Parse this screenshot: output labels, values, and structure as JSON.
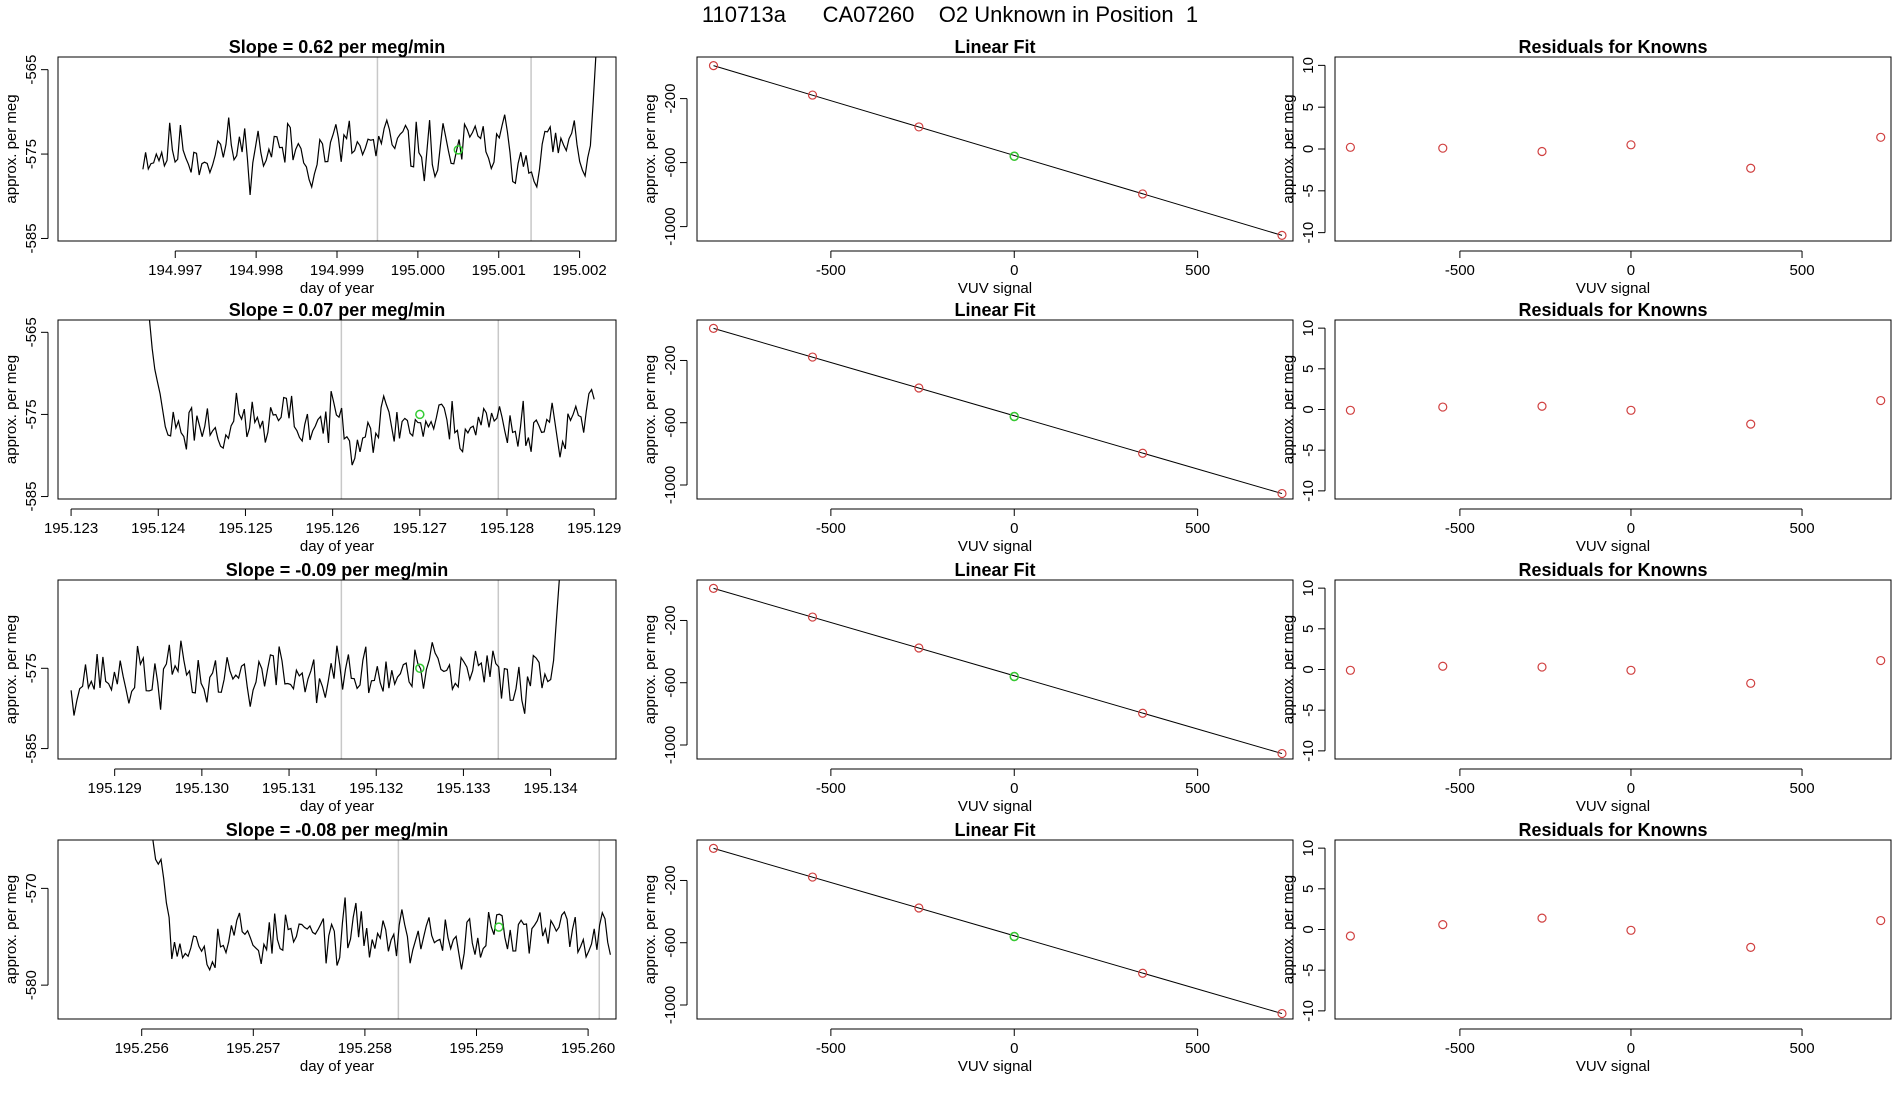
{
  "page": {
    "title": "110713a      CA07260    O2 Unknown in Position  1"
  },
  "colors": {
    "line": "#000000",
    "marker_known": "#d04040",
    "marker_unknown": "#33cc33",
    "vline": "#c8c8c8"
  },
  "chart_data": [
    {
      "type": "line",
      "row": 1,
      "col": 1,
      "title": "Slope =  0.62  per meg/min",
      "xlabel": "day of year",
      "ylabel": "approx. per meg",
      "xlim": [
        194.99555,
        195.00245
      ],
      "ylim": [
        -585.3,
        -563.5
      ],
      "xticks": [
        "194.997",
        "194.998",
        "194.999",
        "195.000",
        "195.001",
        "195.002"
      ],
      "xtick_values": [
        194.997,
        194.998,
        194.999,
        195.0,
        195.001,
        195.002
      ],
      "yticks": [
        "-565",
        "-575",
        "-585"
      ],
      "ytick_values": [
        -565,
        -575,
        -585
      ],
      "vlines": [
        194.9995,
        195.0014
      ],
      "series": [
        {
          "x_start": 194.9966,
          "x_end": 195.0022,
          "baseline": -574.5,
          "amplitude": 2.8,
          "seed": 11,
          "lead": null,
          "tail": {
            "points": 3,
            "values": [
              -574.0,
              -569.0,
              -563.5
            ]
          }
        }
      ],
      "unknown_point": {
        "x": 195.0005,
        "y": -574.5
      }
    },
    {
      "type": "line",
      "row": 1,
      "col": 2,
      "title": "Linear Fit",
      "xlabel": "VUV signal",
      "ylabel": "approx. per meg",
      "xlim": [
        -865,
        760
      ],
      "ylim": [
        -1090,
        60
      ],
      "xticks": [
        "-500",
        "0",
        "500"
      ],
      "xtick_values": [
        -500,
        0,
        500
      ],
      "yticks": [
        "-200",
        "-600",
        "-1000"
      ],
      "ytick_values": [
        -200,
        -600,
        -1000
      ],
      "fit_line": {
        "x": [
          -820,
          730
        ],
        "y": [
          6,
          -1055
        ]
      },
      "known_points": {
        "x": [
          -820,
          -550,
          -260,
          0,
          350,
          730
        ],
        "y": [
          6,
          -178,
          -377,
          -560,
          -796,
          -1055
        ]
      },
      "unknown_point": {
        "x": 0,
        "y": -560
      }
    },
    {
      "type": "scatter",
      "row": 1,
      "col": 3,
      "title": "Residuals for Knowns",
      "xlabel": "VUV signal",
      "ylabel": "approx. per meg",
      "xlim": [
        -865,
        760
      ],
      "ylim": [
        -11,
        11
      ],
      "xticks": [
        "-500",
        "0",
        "500"
      ],
      "xtick_values": [
        -500,
        0,
        500
      ],
      "yticks": [
        "10",
        "5",
        "0",
        "-5",
        "-10"
      ],
      "ytick_values": [
        10,
        5,
        0,
        -5,
        -10
      ],
      "points": {
        "x": [
          -820,
          -550,
          -260,
          0,
          350,
          730
        ],
        "y": [
          0.2,
          0.1,
          -0.3,
          0.5,
          -2.3,
          1.4
        ]
      }
    },
    {
      "type": "line",
      "row": 2,
      "col": 1,
      "title": "Slope =  0.07  per meg/min",
      "xlabel": "day of year",
      "ylabel": "approx. per meg",
      "xlim": [
        195.12285,
        195.12925
      ],
      "ylim": [
        -585.3,
        -563.5
      ],
      "xticks": [
        "195.123",
        "195.124",
        "195.125",
        "195.126",
        "195.127",
        "195.128",
        "195.129"
      ],
      "xtick_values": [
        195.123,
        195.124,
        195.125,
        195.126,
        195.127,
        195.128,
        195.129
      ],
      "yticks": [
        "-565",
        "-575",
        "-585"
      ],
      "ytick_values": [
        -565,
        -575,
        -585
      ],
      "vlines": [
        195.1261,
        195.1279
      ],
      "series": [
        {
          "x_start": 195.1239,
          "x_end": 195.129,
          "baseline": -576.0,
          "amplitude": 2.6,
          "seed": 23,
          "lead": {
            "points": 8,
            "values": [
              -563.5,
              -567,
              -569.5,
              -571,
              -572.5,
              -574.5,
              -576.5,
              -577.5
            ]
          },
          "tail": null
        }
      ],
      "unknown_point": {
        "x": 195.127,
        "y": -575.0
      }
    },
    {
      "type": "line",
      "row": 2,
      "col": 2,
      "title": "Linear Fit",
      "xlabel": "VUV signal",
      "ylabel": "approx. per meg",
      "xlim": [
        -865,
        760
      ],
      "ylim": [
        -1090,
        60
      ],
      "xticks": [
        "-500",
        "0",
        "500"
      ],
      "xtick_values": [
        -500,
        0,
        500
      ],
      "yticks": [
        "-200",
        "-600",
        "-1000"
      ],
      "ytick_values": [
        -200,
        -600,
        -1000
      ],
      "fit_line": {
        "x": [
          -820,
          730
        ],
        "y": [
          6,
          -1055
        ]
      },
      "known_points": {
        "x": [
          -820,
          -550,
          -260,
          0,
          350,
          730
        ],
        "y": [
          6,
          -178,
          -377,
          -560,
          -796,
          -1055
        ]
      },
      "unknown_point": {
        "x": 0,
        "y": -560
      }
    },
    {
      "type": "scatter",
      "row": 2,
      "col": 3,
      "title": "Residuals for Knowns",
      "xlabel": "VUV signal",
      "ylabel": "approx. per meg",
      "xlim": [
        -865,
        760
      ],
      "ylim": [
        -11,
        11
      ],
      "xticks": [
        "-500",
        "0",
        "500"
      ],
      "xtick_values": [
        -500,
        0,
        500
      ],
      "yticks": [
        "10",
        "5",
        "0",
        "-5",
        "-10"
      ],
      "ytick_values": [
        10,
        5,
        0,
        -5,
        -10
      ],
      "points": {
        "x": [
          -820,
          -550,
          -260,
          0,
          350,
          730
        ],
        "y": [
          -0.1,
          0.3,
          0.4,
          -0.1,
          -1.8,
          1.1
        ]
      }
    },
    {
      "type": "line",
      "row": 3,
      "col": 1,
      "title": "Slope =  -0.09  per meg/min",
      "xlabel": "day of year",
      "ylabel": "approx. per meg",
      "xlim": [
        195.12835,
        195.13475
      ],
      "ylim": [
        -586.3,
        -564.0
      ],
      "xticks": [
        "195.129",
        "195.130",
        "195.131",
        "195.132",
        "195.133",
        "195.134"
      ],
      "xtick_values": [
        195.129,
        195.13,
        195.131,
        195.132,
        195.133,
        195.134
      ],
      "yticks": [
        "-575",
        "-585"
      ],
      "ytick_values": [
        -575,
        -585
      ],
      "vlines": [
        195.1316,
        195.1334
      ],
      "series": [
        {
          "x_start": 195.1285,
          "x_end": 195.1341,
          "baseline": -576.0,
          "amplitude": 2.9,
          "seed": 37,
          "lead": null,
          "tail": {
            "points": 3,
            "values": [
              -574.0,
              -569.0,
              -564.0
            ]
          }
        }
      ],
      "unknown_point": {
        "x": 195.1325,
        "y": -575.0
      }
    },
    {
      "type": "line",
      "row": 3,
      "col": 2,
      "title": "Linear Fit",
      "xlabel": "VUV signal",
      "ylabel": "approx. per meg",
      "xlim": [
        -865,
        760
      ],
      "ylim": [
        -1090,
        60
      ],
      "xticks": [
        "-500",
        "0",
        "500"
      ],
      "xtick_values": [
        -500,
        0,
        500
      ],
      "yticks": [
        "-200",
        "-600",
        "-1000"
      ],
      "ytick_values": [
        -200,
        -600,
        -1000
      ],
      "fit_line": {
        "x": [
          -820,
          730
        ],
        "y": [
          6,
          -1055
        ]
      },
      "known_points": {
        "x": [
          -820,
          -550,
          -260,
          0,
          350,
          730
        ],
        "y": [
          6,
          -178,
          -377,
          -560,
          -796,
          -1055
        ]
      },
      "unknown_point": {
        "x": 0,
        "y": -560
      }
    },
    {
      "type": "scatter",
      "row": 3,
      "col": 3,
      "title": "Residuals for Knowns",
      "xlabel": "VUV signal",
      "ylabel": "approx. per meg",
      "xlim": [
        -865,
        760
      ],
      "ylim": [
        -11,
        11
      ],
      "xticks": [
        "-500",
        "0",
        "500"
      ],
      "xtick_values": [
        -500,
        0,
        500
      ],
      "yticks": [
        "10",
        "5",
        "0",
        "-5",
        "-10"
      ],
      "ytick_values": [
        10,
        5,
        0,
        -5,
        -10
      ],
      "points": {
        "x": [
          -820,
          -550,
          -260,
          0,
          350,
          730
        ],
        "y": [
          -0.1,
          0.4,
          0.3,
          -0.1,
          -1.7,
          1.1
        ]
      }
    },
    {
      "type": "line",
      "row": 4,
      "col": 1,
      "title": "Slope =  -0.08  per meg/min",
      "xlabel": "day of year",
      "ylabel": "approx. per meg",
      "xlim": [
        195.25525,
        195.26025
      ],
      "ylim": [
        -583.5,
        -565.0
      ],
      "xticks": [
        "195.256",
        "195.257",
        "195.258",
        "195.259",
        "195.260"
      ],
      "xtick_values": [
        195.256,
        195.257,
        195.258,
        195.259,
        195.26
      ],
      "yticks": [
        "-570",
        "-580"
      ],
      "ytick_values": [
        -570,
        -580
      ],
      "vlines": [
        195.2583,
        195.2601
      ],
      "series": [
        {
          "x_start": 195.2561,
          "x_end": 195.2602,
          "baseline": -575.0,
          "amplitude": 2.2,
          "seed": 53,
          "lead": {
            "points": 7,
            "values": [
              -565.0,
              -567.0,
              -567.5,
              -567.0,
              -569.0,
              -571.5,
              -573.0
            ]
          },
          "tail": null
        }
      ],
      "unknown_point": {
        "x": 195.2592,
        "y": -574.0
      }
    },
    {
      "type": "line",
      "row": 4,
      "col": 2,
      "title": "Linear Fit",
      "xlabel": "VUV signal",
      "ylabel": "approx. per meg",
      "xlim": [
        -865,
        760
      ],
      "ylim": [
        -1090,
        60
      ],
      "xticks": [
        "-500",
        "0",
        "500"
      ],
      "xtick_values": [
        -500,
        0,
        500
      ],
      "yticks": [
        "-200",
        "-600",
        "-1000"
      ],
      "ytick_values": [
        -200,
        -600,
        -1000
      ],
      "fit_line": {
        "x": [
          -820,
          730
        ],
        "y": [
          6,
          -1055
        ]
      },
      "known_points": {
        "x": [
          -820,
          -550,
          -260,
          0,
          350,
          730
        ],
        "y": [
          6,
          -178,
          -377,
          -560,
          -796,
          -1055
        ]
      },
      "unknown_point": {
        "x": 0,
        "y": -560
      }
    },
    {
      "type": "scatter",
      "row": 4,
      "col": 3,
      "title": "Residuals for Knowns",
      "xlabel": "VUV signal",
      "ylabel": "approx. per meg",
      "xlim": [
        -865,
        760
      ],
      "ylim": [
        -11,
        11
      ],
      "xticks": [
        "-500",
        "0",
        "500"
      ],
      "xtick_values": [
        -500,
        0,
        500
      ],
      "yticks": [
        "10",
        "5",
        "0",
        "-5",
        "-10"
      ],
      "points": {
        "x": [
          -820,
          -550,
          -260,
          0,
          350,
          730
        ],
        "y": [
          -0.8,
          0.6,
          1.4,
          -0.1,
          -2.2,
          1.1
        ]
      },
      "ytick_values": [
        10,
        5,
        0,
        -5,
        -10
      ]
    }
  ]
}
